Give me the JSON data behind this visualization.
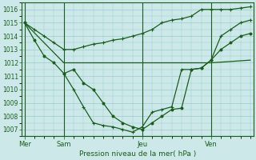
{
  "background_color": "#cce8e8",
  "grid_color": "#99cccc",
  "line_color": "#1a5e1a",
  "marker_color": "#1a5e1a",
  "title": "Pression niveau de la mer( hPa )",
  "ylim": [
    1006.5,
    1016.5
  ],
  "yticks": [
    1007,
    1008,
    1009,
    1010,
    1011,
    1012,
    1013,
    1014,
    1015,
    1016
  ],
  "day_labels": [
    "Mer",
    "Sam",
    "Jeu",
    "Ven"
  ],
  "day_positions": [
    0,
    4,
    12,
    19
  ],
  "xmax": 24,
  "series1_x": [
    0,
    1,
    2,
    3,
    4,
    5,
    6,
    7,
    8,
    9,
    10,
    11,
    12,
    13,
    14,
    15,
    16,
    17,
    18,
    19,
    20,
    21,
    22,
    23
  ],
  "series1_y": [
    1015.0,
    1013.7,
    1012.5,
    1012.0,
    1011.2,
    1011.5,
    1010.5,
    1010.0,
    1009.0,
    1008.0,
    1007.5,
    1007.2,
    1007.0,
    1007.5,
    1008.0,
    1008.5,
    1008.6,
    1011.5,
    1011.6,
    1012.2,
    1013.0,
    1013.5,
    1014.0,
    1014.2
  ],
  "series2_x": [
    0,
    4,
    12,
    19,
    23
  ],
  "series2_y": [
    1015.0,
    1012.0,
    1012.0,
    1012.0,
    1012.2
  ],
  "series3_x": [
    4,
    5,
    6,
    7,
    8,
    9,
    10,
    11,
    12,
    13,
    14,
    15,
    16,
    17,
    18,
    19,
    20,
    21,
    22,
    23
  ],
  "series3_y": [
    1011.2,
    1010.0,
    1008.7,
    1007.5,
    1007.3,
    1007.2,
    1007.0,
    1006.8,
    1007.2,
    1008.3,
    1008.5,
    1008.7,
    1011.5,
    1011.5,
    1011.6,
    1012.2,
    1014.0,
    1014.5,
    1015.0,
    1015.2
  ],
  "series4_x": [
    0,
    1,
    2,
    3,
    4,
    5,
    6,
    7,
    8,
    9,
    10,
    11,
    12,
    13,
    14,
    15,
    16,
    17,
    18,
    19,
    20,
    21,
    22,
    23
  ],
  "series4_y": [
    1015.0,
    1014.5,
    1014.0,
    1013.5,
    1013.0,
    1013.0,
    1013.2,
    1013.4,
    1013.5,
    1013.7,
    1013.8,
    1014.0,
    1014.2,
    1014.5,
    1015.0,
    1015.2,
    1015.3,
    1015.5,
    1016.0,
    1016.0,
    1016.0,
    1016.0,
    1016.1,
    1016.2
  ]
}
